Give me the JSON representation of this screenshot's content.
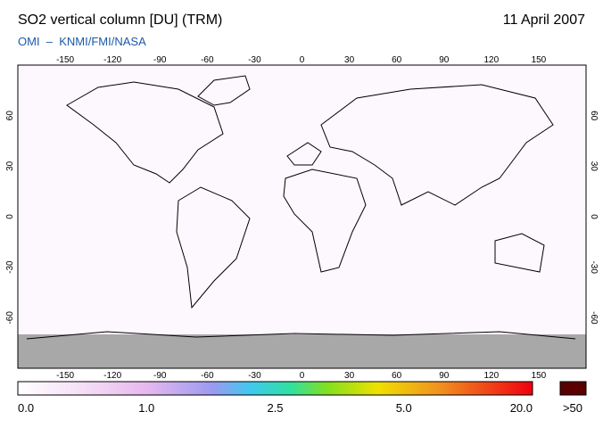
{
  "header": {
    "title": "SO2 vertical column [DU] (TRM)",
    "date": "11 April 2007",
    "source": "OMI  –  KNMI/FMI/NASA"
  },
  "map": {
    "lon_ticks": [
      -150,
      -120,
      -90,
      -60,
      -30,
      0,
      30,
      60,
      90,
      120,
      150
    ],
    "lat_ticks": [
      60,
      30,
      0,
      -30,
      -60
    ]
  },
  "colorbar": {
    "labels": [
      "0.0",
      "1.0",
      "2.5",
      "5.0",
      "20.0"
    ],
    "overflow_label": ">50"
  }
}
